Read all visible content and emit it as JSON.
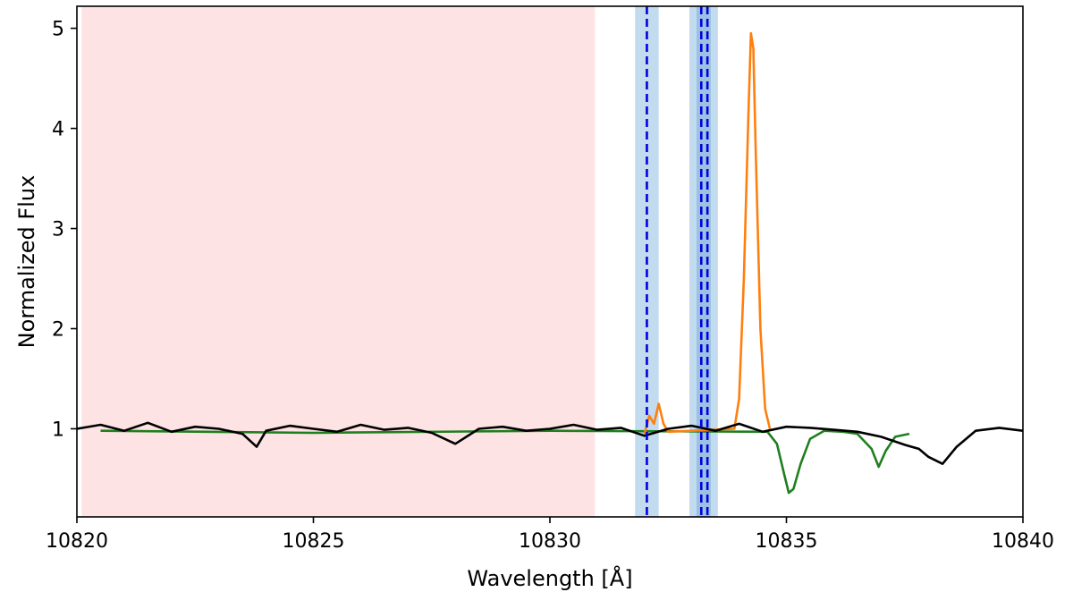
{
  "chart_data": {
    "type": "line",
    "xlabel": "Wavelength [Å]",
    "ylabel": "Normalized Flux",
    "xlim": [
      10820,
      10840
    ],
    "ylim": [
      0.12,
      5.22
    ],
    "x_ticks": [
      10820,
      10825,
      10830,
      10835,
      10840
    ],
    "y_ticks": [
      1,
      2,
      3,
      4,
      5
    ],
    "grid": false,
    "legend": "none",
    "shaded_regions": [
      {
        "x0": 10820.1,
        "x1": 10830.95,
        "color": "#fde3e3"
      },
      {
        "x0": 10831.8,
        "x1": 10832.3,
        "color": "#c3dbee"
      },
      {
        "x0": 10832.95,
        "x1": 10833.55,
        "color": "#c3dbee"
      },
      {
        "x0": 10833.1,
        "x1": 10833.4,
        "color": "#9cc1e2"
      }
    ],
    "vertical_lines": [
      {
        "x": 10832.05,
        "color": "#0000dd",
        "style": "dashed"
      },
      {
        "x": 10833.2,
        "color": "#0000dd",
        "style": "dashed"
      },
      {
        "x": 10833.33,
        "color": "#0000dd",
        "style": "dashed"
      }
    ],
    "series": [
      {
        "color": "#1f7f1f",
        "x": [
          10820.5,
          10825.0,
          10830.0,
          10834.6,
          10834.8,
          10834.95,
          10835.05,
          10835.15,
          10835.3,
          10835.5,
          10835.8,
          10836.2,
          10836.5,
          10836.8,
          10836.95,
          10837.1,
          10837.3,
          10837.6
        ],
        "y": [
          0.98,
          0.96,
          0.98,
          0.97,
          0.85,
          0.55,
          0.36,
          0.4,
          0.65,
          0.9,
          0.98,
          0.97,
          0.95,
          0.8,
          0.62,
          0.78,
          0.92,
          0.95
        ]
      },
      {
        "color": "#ff7f0e",
        "x": [
          10832.0,
          10832.1,
          10832.2,
          10832.3,
          10832.4,
          10832.5,
          10833.9,
          10834.0,
          10834.1,
          10834.2,
          10834.25,
          10834.3,
          10834.35,
          10834.45,
          10834.55,
          10834.65
        ],
        "y": [
          0.95,
          1.13,
          1.05,
          1.25,
          1.05,
          0.97,
          1.0,
          1.3,
          2.5,
          4.2,
          4.95,
          4.8,
          3.8,
          2.0,
          1.2,
          1.0
        ]
      },
      {
        "color": "#000000",
        "x": [
          10820.0,
          10820.5,
          10821.0,
          10821.5,
          10822.0,
          10822.5,
          10823.0,
          10823.5,
          10823.8,
          10824.0,
          10824.5,
          10825.0,
          10825.5,
          10826.0,
          10826.5,
          10827.0,
          10827.5,
          10828.0,
          10828.5,
          10829.0,
          10829.5,
          10830.0,
          10830.5,
          10831.0,
          10831.5,
          10832.0,
          10832.5,
          10833.0,
          10833.5,
          10834.0,
          10834.5,
          10835.0,
          10835.5,
          10836.0,
          10836.5,
          10837.0,
          10837.5,
          10837.8,
          10838.0,
          10838.3,
          10838.6,
          10839.0,
          10839.5,
          10840.0
        ],
        "y": [
          1.0,
          1.04,
          0.98,
          1.06,
          0.97,
          1.02,
          1.0,
          0.95,
          0.82,
          0.98,
          1.03,
          1.0,
          0.97,
          1.04,
          0.99,
          1.01,
          0.96,
          0.85,
          1.0,
          1.02,
          0.98,
          1.0,
          1.04,
          0.99,
          1.01,
          0.93,
          1.0,
          1.03,
          0.98,
          1.05,
          0.97,
          1.02,
          1.01,
          0.99,
          0.97,
          0.92,
          0.84,
          0.8,
          0.72,
          0.65,
          0.82,
          0.98,
          1.01,
          0.98
        ]
      }
    ]
  }
}
